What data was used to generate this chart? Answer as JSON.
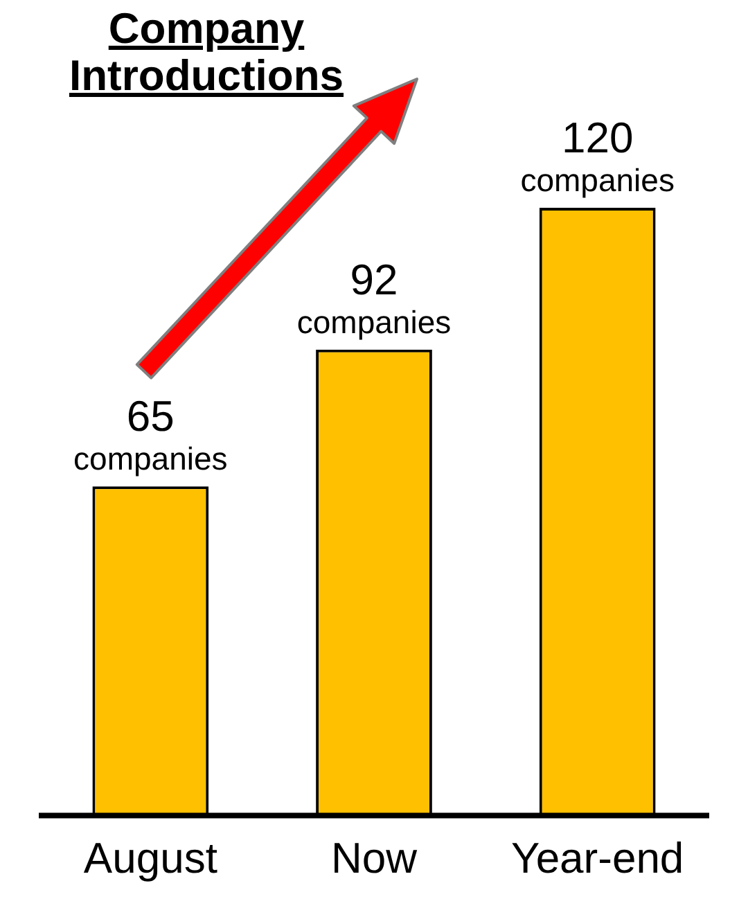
{
  "chart_data": {
    "type": "bar",
    "title": "Company Introductions",
    "categories": [
      "August",
      "Now",
      "Year-end"
    ],
    "values": [
      65,
      92,
      120
    ],
    "value_labels": [
      "65 companies",
      "92 companies",
      "120 companies"
    ],
    "color": "#ffc000",
    "grid": false,
    "legend": false
  }
}
